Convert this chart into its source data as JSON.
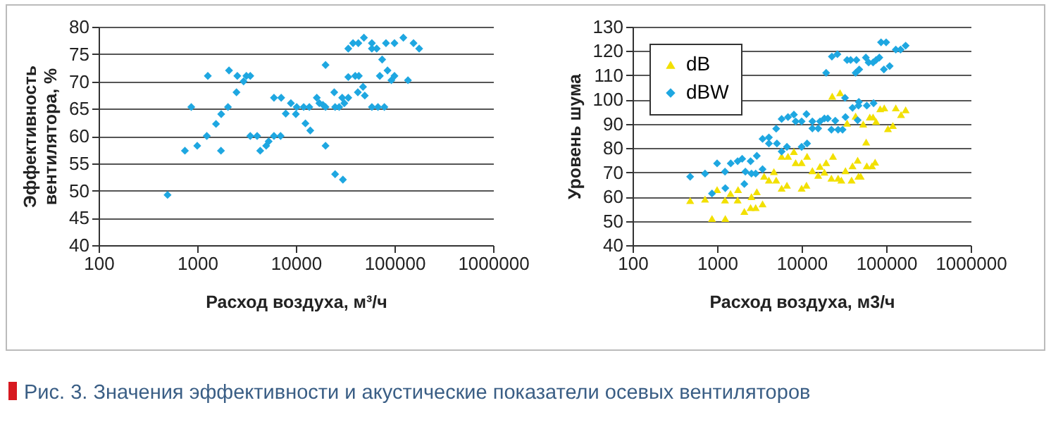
{
  "chart_data": [
    {
      "type": "scatter",
      "xlabel": "Расход воздуха, м³/ч",
      "ylabel": "Эффективность вентилятора, %",
      "log": "x",
      "grid": "y",
      "xlim": [
        100,
        1000000
      ],
      "xticks": [
        100,
        1000,
        10000,
        100000,
        1000000
      ],
      "ylim": [
        40,
        80
      ],
      "yticks": [
        40,
        45,
        50,
        55,
        60,
        65,
        70,
        75,
        80
      ],
      "legend": false,
      "annotations": [
        "Рис. 3. Значения эффективности и акустические показатели осевых вентиляторов"
      ],
      "series": [
        {
          "color": "#1ea7e1",
          "marker": "diamond",
          "x": [
            500,
            750,
            870,
            1000,
            1250,
            1280,
            1550,
            1740,
            1750,
            2050,
            2100,
            2500,
            2550,
            2950,
            3150,
            3450,
            3450,
            4050,
            4350,
            5000,
            5300,
            6000,
            6000,
            7100,
            7000,
            7900,
            8900,
            10000,
            10200,
            12000,
            12500,
            13700,
            14000,
            16300,
            17300,
            18800,
            20000,
            20000,
            20000,
            24500,
            25000,
            27500,
            25000,
            30000,
            29500,
            31000,
            34000,
            34000,
            34000,
            38000,
            40000,
            43000,
            42500,
            43500,
            49000,
            48000,
            50000,
            59000,
            59000,
            59000,
            66000,
            68000,
            71000,
            75000,
            79000,
            82000,
            85000,
            93000,
            100000,
            100000,
            123000,
            137000,
            156000,
            178000
          ],
          "values": [
            49.2,
            57.3,
            65.3,
            58.2,
            60,
            71,
            62.2,
            57.3,
            64,
            65.3,
            72,
            68,
            71,
            70,
            71,
            71,
            60,
            60,
            57.3,
            58.2,
            59,
            67,
            60,
            67,
            60,
            64.1,
            66,
            64,
            65.3,
            65.3,
            62.3,
            65.3,
            61,
            67,
            66,
            65.7,
            65.3,
            73,
            58.2,
            68,
            65.3,
            65.3,
            53,
            52,
            67,
            66,
            67,
            76,
            70.8,
            77,
            71,
            77,
            68,
            71,
            78,
            69,
            67.4,
            77,
            76,
            65.3,
            76,
            65.3,
            71,
            74,
            65.3,
            77,
            72,
            70.2,
            77,
            71,
            78,
            70.2,
            77,
            76
          ]
        }
      ]
    },
    {
      "type": "scatter",
      "xlabel": "Расход воздуха, м3/ч",
      "ylabel": "Уровень шума",
      "log": "x",
      "grid": "y",
      "xlim": [
        100,
        1000000
      ],
      "xticks": [
        100,
        1000,
        10000,
        100000,
        1000000
      ],
      "ylim": [
        40,
        130
      ],
      "yticks": [
        40,
        50,
        60,
        70,
        80,
        90,
        100,
        110,
        120,
        130
      ],
      "legend": "top left",
      "series": [
        {
          "name": "dB",
          "color": "#f2e000",
          "marker": "triangle",
          "x": [
            480,
            720,
            870,
            1000,
            1240,
            1250,
            1440,
            1750,
            1770,
            2100,
            2490,
            2550,
            2860,
            2950,
            3450,
            3600,
            4100,
            4700,
            5000,
            5800,
            5800,
            6700,
            6900,
            8100,
            8500,
            10000,
            10000,
            11400,
            11600,
            13400,
            15700,
            16500,
            18600,
            19500,
            22500,
            23500,
            23000,
            27000,
            28500,
            29500,
            33000,
            34500,
            39000,
            40000,
            43500,
            46000,
            47000,
            50000,
            53500,
            58000,
            59000,
            64000,
            68000,
            70000,
            74000,
            76000,
            85000,
            95000,
            105000,
            120000,
            130000,
            150000,
            170000
          ],
          "values": [
            58.4,
            59,
            51,
            62.9,
            58.6,
            51,
            61.3,
            58.6,
            62.9,
            53.9,
            55.5,
            60,
            55.5,
            62,
            57,
            68.4,
            66.8,
            70.3,
            66.8,
            76.6,
            63.5,
            64.7,
            76.6,
            78.6,
            74,
            74,
            63.5,
            64.7,
            76.6,
            70.7,
            68.8,
            72.5,
            70.1,
            74,
            67.6,
            76.6,
            101.4,
            67.6,
            102.8,
            66.8,
            70.7,
            90.3,
            66.8,
            72.7,
            93.2,
            75,
            68.4,
            68.4,
            89.9,
            82.5,
            72.7,
            92.8,
            72.7,
            92.8,
            74.2,
            91,
            96.2,
            96.6,
            88,
            89.3,
            96.6,
            93.8,
            95.8
          ]
        },
        {
          "name": "dBW",
          "color": "#1ea7e1",
          "marker": "diamond",
          "x": [
            480,
            720,
            870,
            1000,
            1240,
            1250,
            1450,
            1750,
            1980,
            2160,
            2100,
            2490,
            2550,
            2860,
            2950,
            3450,
            3450,
            4100,
            4100,
            5000,
            5100,
            5800,
            5800,
            6700,
            6900,
            8100,
            8500,
            10000,
            10000,
            11400,
            11600,
            13400,
            13400,
            15700,
            16500,
            18600,
            19500,
            20400,
            22500,
            22800,
            25000,
            26500,
            27000,
            30500,
            32600,
            33000,
            34500,
            38000,
            40000,
            43500,
            44500,
            46000,
            47000,
            48000,
            47500,
            57500,
            59000,
            62000,
            70000,
            71000,
            76000,
            83000,
            87000,
            94000,
            100000,
            110000,
            130000,
            148000,
            170000
          ],
          "values": [
            68.2,
            69.5,
            61.3,
            73.7,
            70.3,
            63.5,
            73.7,
            74.6,
            75.6,
            70.3,
            65.2,
            74.6,
            69.5,
            69.5,
            76.8,
            71.3,
            83.8,
            84.4,
            81.9,
            88,
            81.9,
            92,
            78.6,
            80.5,
            92.8,
            93.8,
            91,
            91,
            80.5,
            94,
            81.9,
            88.1,
            91,
            88.1,
            91,
            92.2,
            111,
            92.2,
            87.6,
            117.7,
            91.3,
            118.7,
            87.6,
            87.6,
            100.7,
            92.8,
            116.3,
            116.3,
            96.6,
            111,
            116.3,
            91.5,
            97.5,
            112.4,
            99,
            117.3,
            97.5,
            115.3,
            115.3,
            98.5,
            116.3,
            117.3,
            123.6,
            112.4,
            123.6,
            113.8,
            120.6,
            120.6,
            122.2
          ]
        }
      ]
    }
  ]
}
